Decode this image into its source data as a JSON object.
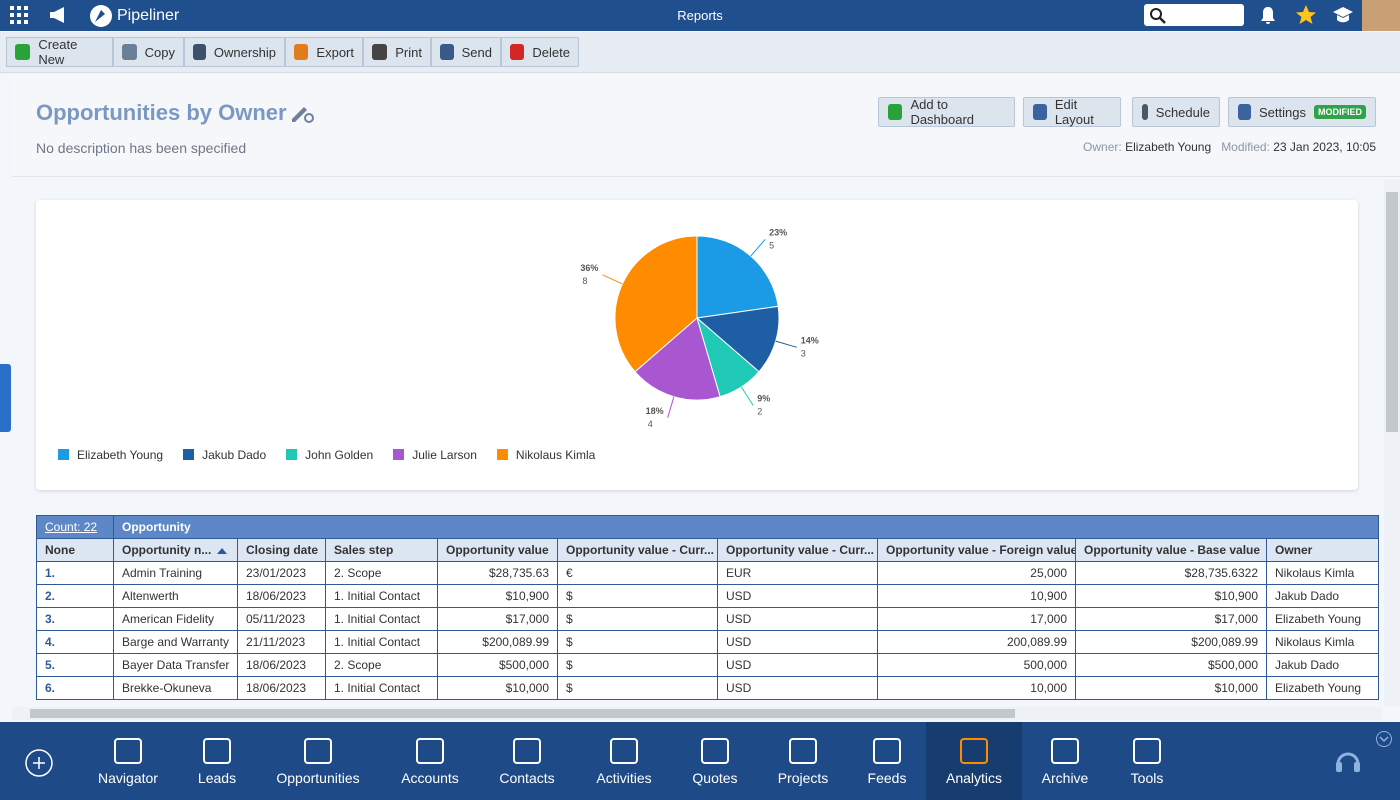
{
  "header": {
    "app_name": "Pipeliner",
    "page_title": "Reports"
  },
  "toolbar": [
    "Create New",
    "Copy",
    "Ownership",
    "Export",
    "Print",
    "Send",
    "Delete"
  ],
  "report": {
    "title": "Opportunities by Owner",
    "description": "No description has been specified",
    "buttons": [
      "Add to Dashboard",
      "Edit Layout",
      "Schedule",
      "Settings"
    ],
    "badge": "MODIFIED",
    "owner_label": "Owner:",
    "owner": "Elizabeth Young",
    "modified_label": "Modified:",
    "modified": "23 Jan 2023, 10:05"
  },
  "chart_data": {
    "type": "pie",
    "categories": [
      "Elizabeth Young",
      "Jakub Dado",
      "John Golden",
      "Julie Larson",
      "Nikolaus Kimla"
    ],
    "values": [
      5,
      3,
      2,
      4,
      8
    ],
    "percent_labels": [
      "23%",
      "14%",
      "9%",
      "18%",
      "36%"
    ],
    "colors": [
      "#1b9be6",
      "#1d5ea4",
      "#1fc9b5",
      "#a956d1",
      "#ff8c00"
    ]
  },
  "table": {
    "count": "Count: 22",
    "group": "Opportunity",
    "columns": [
      "None",
      "Opportunity n...",
      "Closing date",
      "Sales step",
      "Opportunity value",
      "Opportunity value - Curr...",
      "Opportunity value - Curr...",
      "Opportunity value - Foreign value",
      "Opportunity value - Base value",
      "Owner"
    ],
    "rows": [
      [
        "1.",
        "Admin Training",
        "23/01/2023",
        "2. Scope",
        "$28,735.63",
        "€",
        "EUR",
        "25,000",
        "$28,735.6322",
        "Nikolaus Kimla"
      ],
      [
        "2.",
        "Altenwerth",
        "18/06/2023",
        "1. Initial Contact",
        "$10,900",
        "$",
        "USD",
        "10,900",
        "$10,900",
        "Jakub Dado"
      ],
      [
        "3.",
        "American Fidelity",
        "05/11/2023",
        "1. Initial Contact",
        "$17,000",
        "$",
        "USD",
        "17,000",
        "$17,000",
        "Elizabeth Young"
      ],
      [
        "4.",
        "Barge and Warranty",
        "21/11/2023",
        "1. Initial Contact",
        "$200,089.99",
        "$",
        "USD",
        "200,089.99",
        "$200,089.99",
        "Nikolaus Kimla"
      ],
      [
        "5.",
        "Bayer Data Transfer",
        "18/06/2023",
        "2. Scope",
        "$500,000",
        "$",
        "USD",
        "500,000",
        "$500,000",
        "Jakub Dado"
      ],
      [
        "6.",
        "Brekke-Okuneva",
        "18/06/2023",
        "1. Initial Contact",
        "$10,000",
        "$",
        "USD",
        "10,000",
        "$10,000",
        "Elizabeth Young"
      ]
    ]
  },
  "nav": {
    "items": [
      "Navigator",
      "Leads",
      "Opportunities",
      "Accounts",
      "Contacts",
      "Activities",
      "Quotes",
      "Projects",
      "Feeds",
      "Analytics",
      "Archive",
      "Tools"
    ],
    "active": "Analytics"
  }
}
